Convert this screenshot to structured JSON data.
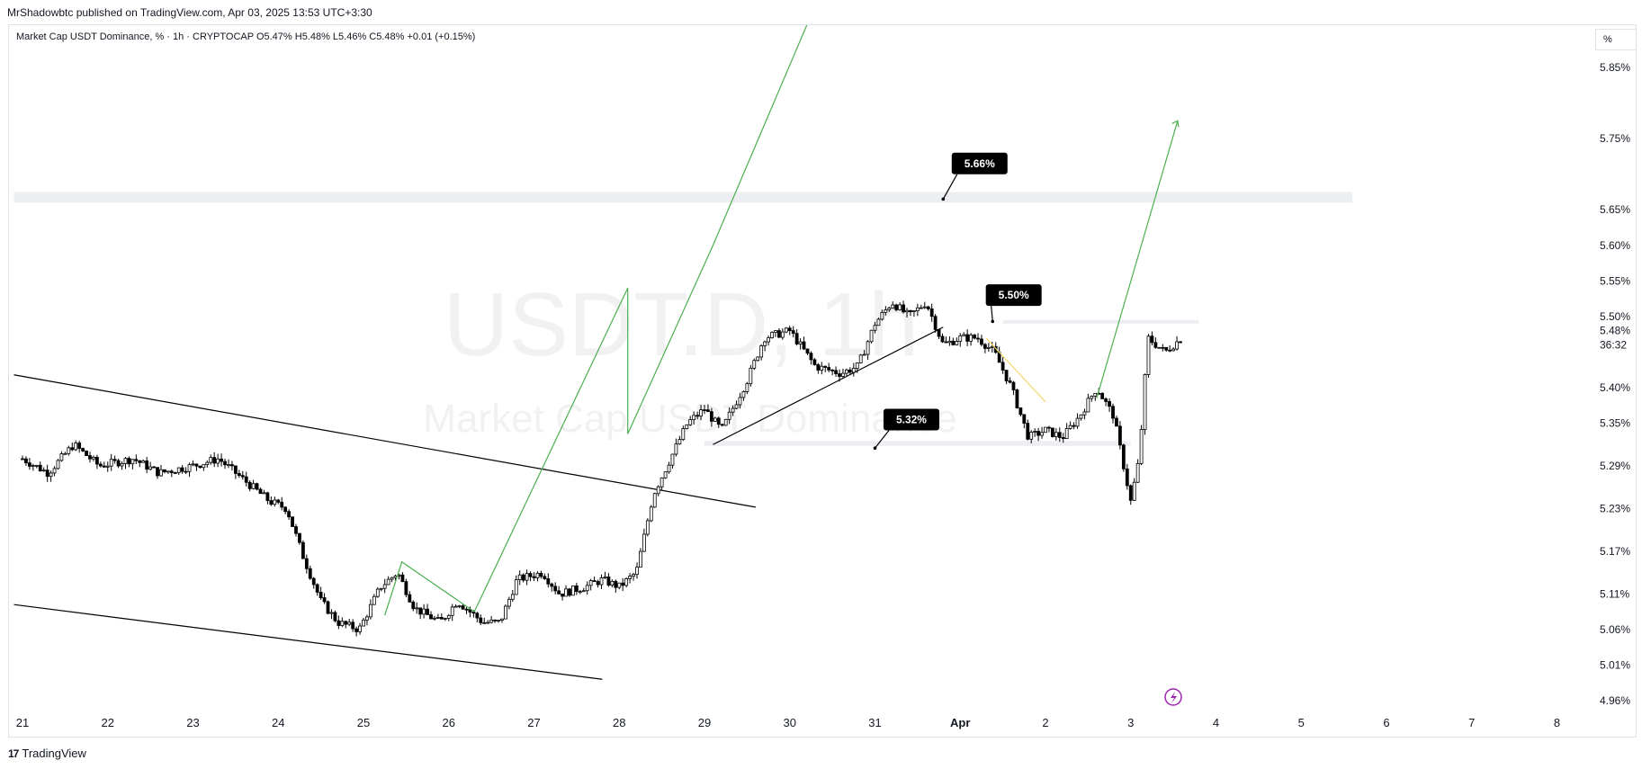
{
  "header": {
    "attribution": "MrShadowbtc published on TradingView.com, Apr 03, 2025 13:53 UTC+3:30",
    "legend": "Market Cap USDT Dominance, % · 1h · CRYPTOCAP  O5.47%  H5.48%  L5.46%  C5.48%  +0.01 (+0.15%)",
    "scale_button": "%"
  },
  "watermark": {
    "symbol": "USDT.D, 1h",
    "name": "Market Cap USDT Dominance"
  },
  "footer": {
    "brand": "TradingView",
    "brand_mark": "17"
  },
  "colors": {
    "up": "#ffffff",
    "down": "#000000",
    "projection": "#4caf50",
    "yellow_segment": "#f5d76e",
    "zone": "#eceef1",
    "accent_icon": "#9c27b0"
  },
  "icons": {
    "alert": "lightning-icon"
  },
  "chart_data": {
    "type": "candlestick",
    "timeframe": "1h",
    "symbol": "USDT.D",
    "y_ticks": [
      5.85,
      5.75,
      5.65,
      5.6,
      5.55,
      5.5,
      5.4,
      5.35,
      5.29,
      5.23,
      5.17,
      5.11,
      5.06,
      5.01,
      4.96
    ],
    "y_tick_labels": [
      "5.85%",
      "5.75%",
      "5.65%",
      "5.60%",
      "5.55%",
      "5.50%",
      "5.40%",
      "5.35%",
      "5.29%",
      "5.23%",
      "5.17%",
      "5.11%",
      "5.06%",
      "5.01%",
      "4.96%"
    ],
    "x_ticks": [
      {
        "label": "21",
        "bold": false
      },
      {
        "label": "22",
        "bold": false
      },
      {
        "label": "23",
        "bold": false
      },
      {
        "label": "24",
        "bold": false
      },
      {
        "label": "25",
        "bold": false
      },
      {
        "label": "26",
        "bold": false
      },
      {
        "label": "27",
        "bold": false
      },
      {
        "label": "28",
        "bold": false
      },
      {
        "label": "29",
        "bold": false
      },
      {
        "label": "30",
        "bold": false
      },
      {
        "label": "31",
        "bold": false
      },
      {
        "label": "Apr",
        "bold": true
      },
      {
        "label": "2",
        "bold": false
      },
      {
        "label": "3",
        "bold": false
      },
      {
        "label": "4",
        "bold": false
      },
      {
        "label": "5",
        "bold": false
      },
      {
        "label": "6",
        "bold": false
      },
      {
        "label": "7",
        "bold": false
      },
      {
        "label": "8",
        "bold": false
      }
    ],
    "last_price": "5.48%",
    "countdown": "36:32",
    "path_points": [
      [
        21.0,
        5.3
      ],
      [
        21.3,
        5.28
      ],
      [
        21.6,
        5.32
      ],
      [
        21.9,
        5.29
      ],
      [
        22.3,
        5.3
      ],
      [
        22.6,
        5.28
      ],
      [
        23.0,
        5.29
      ],
      [
        23.3,
        5.3
      ],
      [
        23.6,
        5.27
      ],
      [
        23.9,
        5.24
      ],
      [
        24.1,
        5.23
      ],
      [
        24.3,
        5.16
      ],
      [
        24.5,
        5.1
      ],
      [
        24.7,
        5.07
      ],
      [
        24.95,
        5.06
      ],
      [
        25.2,
        5.12
      ],
      [
        25.4,
        5.14
      ],
      [
        25.6,
        5.09
      ],
      [
        25.9,
        5.07
      ],
      [
        26.1,
        5.1
      ],
      [
        26.4,
        5.07
      ],
      [
        26.6,
        5.07
      ],
      [
        26.8,
        5.13
      ],
      [
        27.1,
        5.14
      ],
      [
        27.3,
        5.11
      ],
      [
        27.6,
        5.12
      ],
      [
        27.8,
        5.13
      ],
      [
        28.0,
        5.12
      ],
      [
        28.2,
        5.14
      ],
      [
        28.4,
        5.25
      ],
      [
        28.6,
        5.3
      ],
      [
        28.8,
        5.35
      ],
      [
        29.0,
        5.37
      ],
      [
        29.2,
        5.34
      ],
      [
        29.5,
        5.41
      ],
      [
        29.7,
        5.47
      ],
      [
        30.0,
        5.48
      ],
      [
        30.3,
        5.43
      ],
      [
        30.6,
        5.42
      ],
      [
        30.8,
        5.43
      ],
      [
        31.0,
        5.49
      ],
      [
        31.2,
        5.52
      ],
      [
        31.4,
        5.5
      ],
      [
        31.6,
        5.52
      ],
      [
        31.8,
        5.46
      ],
      [
        32.0,
        5.47
      ],
      [
        32.2,
        5.47
      ],
      [
        32.4,
        5.45
      ],
      [
        32.6,
        5.4
      ],
      [
        32.8,
        5.33
      ],
      [
        33.0,
        5.34
      ],
      [
        33.2,
        5.33
      ],
      [
        33.4,
        5.36
      ],
      [
        33.6,
        5.4
      ],
      [
        33.8,
        5.36
      ],
      [
        34.0,
        5.24
      ],
      [
        34.1,
        5.3
      ],
      [
        34.2,
        5.47
      ],
      [
        34.4,
        5.45
      ],
      [
        34.6,
        5.47
      ]
    ],
    "annotations": [
      {
        "text": "5.66%",
        "x": 31.9,
        "y": 5.715,
        "anchor_x": 31.8,
        "anchor_y": 5.665
      },
      {
        "text": "5.50%",
        "x": 32.3,
        "y": 5.53,
        "anchor_x": 32.38,
        "anchor_y": 5.493
      },
      {
        "text": "5.32%",
        "x": 31.1,
        "y": 5.355,
        "anchor_x": 31.0,
        "anchor_y": 5.315
      }
    ],
    "zones": [
      {
        "x_start": 20.9,
        "x_end": 36.6,
        "y_low": 5.66,
        "y_high": 5.675
      },
      {
        "x_start": 29.0,
        "x_end": 34.0,
        "y_low": 5.318,
        "y_high": 5.325
      },
      {
        "x_start": 32.5,
        "x_end": 34.8,
        "y_low": 5.49,
        "y_high": 5.495
      }
    ],
    "trendlines": [
      {
        "points": [
          [
            20.9,
            5.418
          ],
          [
            29.6,
            5.232
          ]
        ],
        "color": "#000000"
      },
      {
        "points": [
          [
            20.9,
            5.095
          ],
          [
            27.8,
            4.99
          ]
        ],
        "color": "#000000"
      },
      {
        "points": [
          [
            29.1,
            5.32
          ],
          [
            31.8,
            5.485
          ]
        ],
        "color": "#000000"
      }
    ],
    "projections": [
      {
        "points": [
          [
            25.25,
            5.08
          ],
          [
            25.45,
            5.155
          ],
          [
            26.3,
            5.085
          ]
        ],
        "color": "#4caf50"
      },
      {
        "points": [
          [
            26.3,
            5.085
          ],
          [
            28.1,
            5.54
          ],
          [
            28.1,
            5.335
          ],
          [
            29.1,
            5.6
          ],
          [
            30.2,
            5.94
          ]
        ],
        "color": "#4caf50"
      },
      {
        "points": [
          [
            33.6,
            5.385
          ],
          [
            34.55,
            5.775
          ]
        ],
        "color": "#4caf50"
      },
      {
        "points": [
          [
            32.3,
            5.47
          ],
          [
            33.0,
            5.38
          ]
        ],
        "color": "#f5d76e"
      }
    ]
  }
}
